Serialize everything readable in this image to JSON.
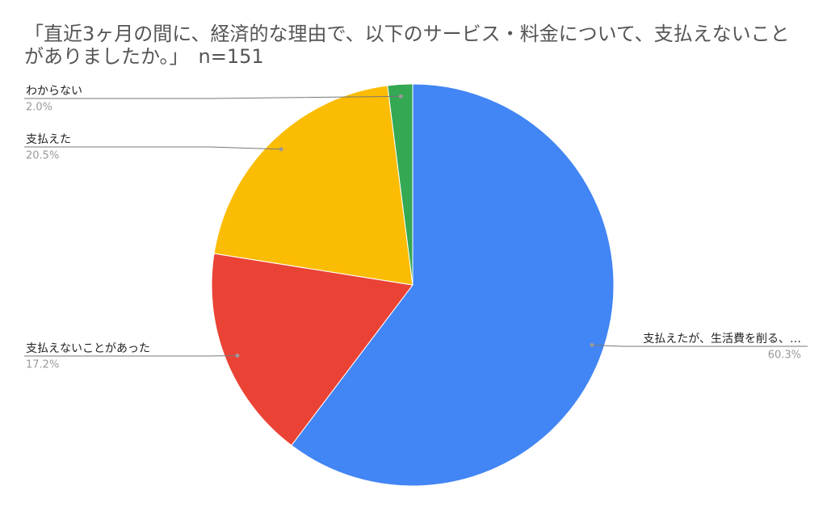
{
  "chart_data": {
    "type": "pie",
    "title": "「直近3ヶ月の間に、経済的な理由で、以下のサービス・料金について、支払えないことがありましたか。」　n=151",
    "categories": [
      "支払えたが、生活費を削る、…",
      "支払えないことがあった",
      "支払えた",
      "わからない"
    ],
    "values": [
      60.3,
      17.2,
      20.5,
      2.0
    ],
    "value_labels": [
      "60.3%",
      "17.2%",
      "20.5%",
      "2.0%"
    ],
    "colors": [
      "#4285f4",
      "#ea4335",
      "#fbbc04",
      "#34a853"
    ]
  }
}
